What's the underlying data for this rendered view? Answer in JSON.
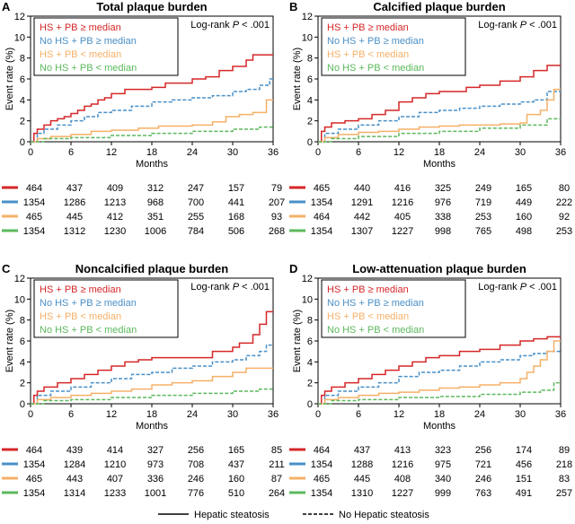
{
  "chart_data": [
    {
      "type": "line",
      "panel_letter": "A",
      "title": "Total plaque burden",
      "xlabel": "Months",
      "ylabel": "Event rate (%)",
      "xlim": [
        0,
        36
      ],
      "ylim": [
        0,
        12
      ],
      "xticks": [
        0,
        6,
        12,
        18,
        24,
        30,
        36
      ],
      "yticks": [
        0,
        2,
        4,
        6,
        8,
        10,
        12
      ],
      "annotation": "Log-rank P < .001",
      "legend_position": "top-left",
      "series": [
        {
          "name": "HS + PB ≥ median",
          "color": "#d62728",
          "style": "solid",
          "x": [
            0,
            0.5,
            1,
            2,
            3,
            4,
            5,
            6,
            7,
            8,
            9,
            10,
            11,
            12,
            14,
            16,
            18,
            20,
            22,
            24,
            26,
            28,
            30,
            32,
            33,
            36
          ],
          "y": [
            0,
            0.8,
            1.2,
            1.6,
            2.0,
            2.2,
            2.4,
            2.7,
            3.0,
            3.4,
            3.6,
            4.0,
            4.2,
            4.6,
            5.0,
            5.0,
            5.2,
            5.6,
            5.6,
            6.0,
            6.2,
            6.8,
            7.2,
            7.8,
            8.3,
            8.3
          ],
          "numbers_at_risk": [
            464,
            437,
            409,
            312,
            247,
            157,
            79
          ]
        },
        {
          "name": "No HS + PB ≥ median",
          "color": "#4a90c8",
          "style": "dashed",
          "x": [
            0,
            1,
            2,
            4,
            6,
            8,
            10,
            12,
            15,
            18,
            21,
            24,
            27,
            30,
            32,
            34,
            35.5,
            36
          ],
          "y": [
            0,
            0.8,
            1.2,
            1.6,
            2.0,
            2.4,
            2.8,
            3.0,
            3.4,
            3.8,
            4.0,
            4.2,
            4.4,
            4.8,
            5.0,
            5.4,
            6.0,
            6.0
          ],
          "numbers_at_risk": [
            1354,
            1286,
            1213,
            968,
            700,
            441,
            207
          ]
        },
        {
          "name": "HS + PB < median",
          "color": "#f5b068",
          "style": "solid",
          "x": [
            0,
            1,
            3,
            6,
            9,
            12,
            16,
            19,
            22,
            24,
            27,
            29,
            31,
            33,
            35,
            36
          ],
          "y": [
            0,
            0.3,
            0.5,
            0.7,
            1.0,
            1.1,
            1.3,
            1.5,
            1.5,
            1.6,
            1.9,
            2.4,
            2.6,
            2.8,
            4.0,
            4.0
          ],
          "numbers_at_risk": [
            465,
            445,
            412,
            351,
            255,
            168,
            93
          ]
        },
        {
          "name": "No HS + PB < median",
          "color": "#5cb85c",
          "style": "dashed",
          "x": [
            0,
            2,
            6,
            12,
            18,
            24,
            30,
            34,
            36
          ],
          "y": [
            0,
            0.3,
            0.4,
            0.6,
            0.8,
            1.0,
            1.2,
            1.4,
            1.4
          ],
          "numbers_at_risk": [
            1354,
            1312,
            1230,
            1006,
            784,
            506,
            268
          ]
        }
      ]
    },
    {
      "type": "line",
      "panel_letter": "B",
      "title": "Calcified plaque burden",
      "xlabel": "Months",
      "ylabel": "Event rate (%)",
      "xlim": [
        0,
        36
      ],
      "ylim": [
        0,
        12
      ],
      "xticks": [
        0,
        6,
        12,
        18,
        24,
        30,
        36
      ],
      "yticks": [
        0,
        2,
        4,
        6,
        8,
        10,
        12
      ],
      "annotation": "Log-rank P < .001",
      "legend_position": "top-left",
      "series": [
        {
          "name": "HS + PB ≥ median",
          "color": "#d62728",
          "style": "solid",
          "x": [
            0,
            0.5,
            1,
            2,
            4,
            6,
            8,
            10,
            12,
            14,
            16,
            18,
            22,
            24,
            27,
            30,
            32,
            34,
            36
          ],
          "y": [
            0,
            1.0,
            1.4,
            1.8,
            2.0,
            2.2,
            2.6,
            3.0,
            3.8,
            4.2,
            4.6,
            4.8,
            5.2,
            5.4,
            5.8,
            6.2,
            6.8,
            7.3,
            7.3
          ],
          "numbers_at_risk": [
            465,
            440,
            416,
            325,
            249,
            165,
            80
          ]
        },
        {
          "name": "No HS + PB ≥ median",
          "color": "#4a90c8",
          "style": "dashed",
          "x": [
            0,
            1,
            3,
            6,
            9,
            12,
            15,
            18,
            21,
            24,
            27,
            30,
            32,
            34,
            36
          ],
          "y": [
            0,
            0.8,
            1.2,
            1.6,
            2.0,
            2.4,
            2.8,
            3.0,
            3.2,
            3.4,
            3.6,
            3.8,
            4.0,
            4.8,
            4.8
          ],
          "numbers_at_risk": [
            1354,
            1291,
            1216,
            976,
            719,
            449,
            222
          ]
        },
        {
          "name": "HS + PB < median",
          "color": "#f5b068",
          "style": "solid",
          "x": [
            0,
            1,
            3,
            6,
            9,
            12,
            15,
            18,
            21,
            24,
            27,
            30,
            31,
            33,
            34,
            35,
            36
          ],
          "y": [
            0,
            0.4,
            0.7,
            0.9,
            1.0,
            1.2,
            1.4,
            1.5,
            1.6,
            1.6,
            1.7,
            1.8,
            2.6,
            3.0,
            4.0,
            5.0,
            5.0
          ],
          "numbers_at_risk": [
            464,
            442,
            405,
            338,
            253,
            160,
            92
          ]
        },
        {
          "name": "No HS + PB < median",
          "color": "#5cb85c",
          "style": "dashed",
          "x": [
            0,
            2,
            6,
            12,
            18,
            24,
            30,
            34,
            36
          ],
          "y": [
            0,
            0.3,
            0.5,
            0.8,
            1.0,
            1.3,
            1.6,
            2.2,
            2.2
          ],
          "numbers_at_risk": [
            1354,
            1307,
            1227,
            998,
            765,
            498,
            253
          ]
        }
      ]
    },
    {
      "type": "line",
      "panel_letter": "C",
      "title": "Noncalcified plaque burden",
      "xlabel": "Months",
      "ylabel": "Event rate (%)",
      "xlim": [
        0,
        36
      ],
      "ylim": [
        0,
        12
      ],
      "xticks": [
        0,
        6,
        12,
        18,
        24,
        30,
        36
      ],
      "yticks": [
        0,
        2,
        4,
        6,
        8,
        10,
        12
      ],
      "annotation": "Log-rank P < .001",
      "legend_position": "top-left",
      "series": [
        {
          "name": "HS + PB ≥ median",
          "color": "#d62728",
          "style": "solid",
          "x": [
            0,
            0.5,
            1,
            2,
            4,
            6,
            8,
            10,
            12,
            14,
            16,
            18,
            22,
            24,
            27,
            30,
            31,
            33,
            34,
            35,
            36
          ],
          "y": [
            0,
            0.8,
            1.2,
            1.6,
            2.0,
            2.4,
            2.8,
            3.2,
            3.6,
            4.0,
            4.2,
            4.4,
            4.4,
            4.4,
            5.0,
            5.4,
            5.8,
            6.6,
            7.6,
            8.8,
            8.8
          ],
          "numbers_at_risk": [
            464,
            439,
            414,
            327,
            256,
            165,
            85
          ]
        },
        {
          "name": "No HS + PB ≥ median",
          "color": "#4a90c8",
          "style": "dashed",
          "x": [
            0,
            1,
            3,
            6,
            9,
            12,
            15,
            18,
            21,
            24,
            27,
            30,
            32,
            34,
            35,
            36
          ],
          "y": [
            0,
            0.8,
            1.2,
            1.6,
            2.0,
            2.4,
            2.8,
            3.0,
            3.4,
            3.6,
            4.0,
            4.2,
            4.6,
            5.0,
            5.6,
            5.6
          ],
          "numbers_at_risk": [
            1354,
            1284,
            1210,
            973,
            708,
            437,
            211
          ]
        },
        {
          "name": "HS + PB < median",
          "color": "#f5b068",
          "style": "solid",
          "x": [
            0,
            1,
            3,
            6,
            9,
            12,
            15,
            18,
            21,
            24,
            27,
            30,
            32,
            36
          ],
          "y": [
            0,
            0.4,
            0.6,
            0.8,
            1.0,
            1.2,
            1.4,
            1.8,
            2.0,
            2.2,
            2.6,
            3.0,
            3.4,
            3.4
          ],
          "numbers_at_risk": [
            465,
            443,
            407,
            336,
            246,
            160,
            87
          ]
        },
        {
          "name": "No HS + PB < median",
          "color": "#5cb85c",
          "style": "dashed",
          "x": [
            0,
            2,
            6,
            12,
            18,
            24,
            30,
            34,
            36
          ],
          "y": [
            0,
            0.3,
            0.4,
            0.6,
            0.8,
            1.0,
            1.2,
            1.4,
            1.4
          ],
          "numbers_at_risk": [
            1354,
            1314,
            1233,
            1001,
            776,
            510,
            264
          ]
        }
      ]
    },
    {
      "type": "line",
      "panel_letter": "D",
      "title": "Low-attenuation plaque burden",
      "xlabel": "Months",
      "ylabel": "Event rate (%)",
      "xlim": [
        0,
        36
      ],
      "ylim": [
        0,
        12
      ],
      "xticks": [
        0,
        6,
        12,
        18,
        24,
        30,
        36
      ],
      "yticks": [
        0,
        2,
        4,
        6,
        8,
        10,
        12
      ],
      "annotation": "Log-rank P < .001",
      "legend_position": "top-left",
      "series": [
        {
          "name": "HS + PB ≥ median",
          "color": "#d62728",
          "style": "solid",
          "x": [
            0,
            0.5,
            1,
            2,
            4,
            6,
            8,
            10,
            12,
            14,
            16,
            18,
            21,
            24,
            27,
            30,
            32,
            34,
            36
          ],
          "y": [
            0,
            0.8,
            1.2,
            1.6,
            2.0,
            2.4,
            2.8,
            3.2,
            3.6,
            4.0,
            4.4,
            4.6,
            5.0,
            5.2,
            5.6,
            6.0,
            6.2,
            6.4,
            6.4
          ],
          "numbers_at_risk": [
            464,
            437,
            413,
            323,
            256,
            174,
            89
          ]
        },
        {
          "name": "No HS + PB ≥ median",
          "color": "#4a90c8",
          "style": "dashed",
          "x": [
            0,
            1,
            3,
            6,
            9,
            12,
            15,
            18,
            21,
            24,
            27,
            30,
            32,
            34,
            36
          ],
          "y": [
            0,
            0.8,
            1.2,
            1.6,
            2.0,
            2.6,
            3.0,
            3.2,
            3.6,
            4.0,
            4.2,
            4.6,
            4.8,
            5.0,
            5.0
          ],
          "numbers_at_risk": [
            1354,
            1288,
            1216,
            975,
            721,
            456,
            218
          ]
        },
        {
          "name": "HS + PB < median",
          "color": "#f5b068",
          "style": "solid",
          "x": [
            0,
            1,
            3,
            6,
            9,
            12,
            15,
            18,
            21,
            24,
            27,
            30,
            31,
            32,
            33,
            34,
            35,
            36
          ],
          "y": [
            0,
            0.4,
            0.6,
            0.8,
            1.0,
            1.1,
            1.3,
            1.5,
            1.6,
            1.8,
            2.0,
            2.4,
            3.0,
            3.6,
            4.2,
            5.0,
            6.0,
            6.0
          ],
          "numbers_at_risk": [
            465,
            445,
            408,
            340,
            246,
            151,
            83
          ]
        },
        {
          "name": "No HS + PB < median",
          "color": "#5cb85c",
          "style": "dashed",
          "x": [
            0,
            2,
            6,
            12,
            18,
            24,
            30,
            33,
            35,
            36
          ],
          "y": [
            0,
            0.3,
            0.4,
            0.6,
            0.7,
            0.9,
            1.1,
            1.3,
            2.0,
            2.0
          ],
          "numbers_at_risk": [
            1354,
            1310,
            1227,
            999,
            763,
            491,
            257
          ]
        }
      ]
    }
  ],
  "footer_legend": [
    {
      "label": "Hepatic steatosis",
      "style": "solid"
    },
    {
      "label": "No Hepatic steatosis",
      "style": "dashed"
    }
  ]
}
